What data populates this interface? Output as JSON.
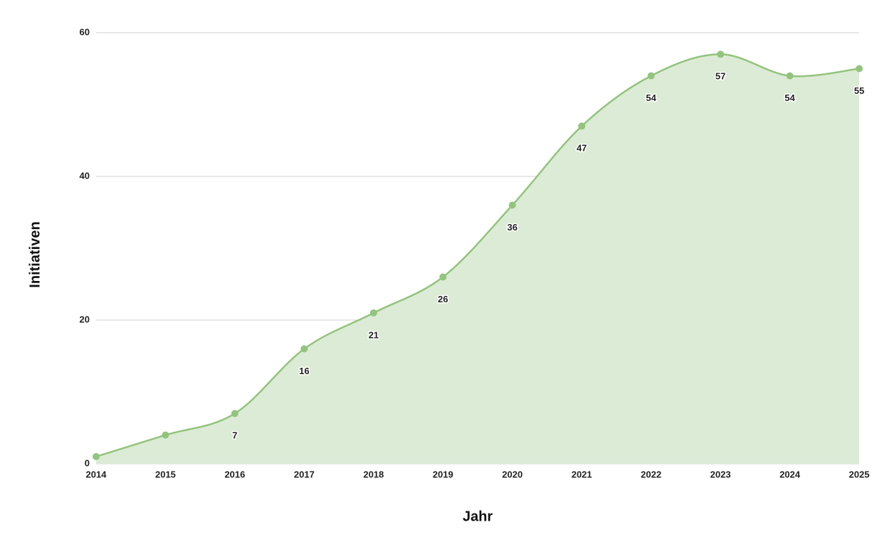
{
  "chart_data": {
    "type": "area",
    "x": [
      2014,
      2015,
      2016,
      2017,
      2018,
      2019,
      2020,
      2021,
      2022,
      2023,
      2024,
      2025
    ],
    "series": [
      {
        "name": "Initiativen",
        "color": "#93c47d",
        "values": [
          1,
          4,
          7,
          16,
          21,
          26,
          36,
          47,
          54,
          57,
          54,
          55
        ],
        "value_labels": [
          null,
          null,
          "7",
          "16",
          "21",
          "26",
          "36",
          "47",
          "54",
          "57",
          "54",
          "55"
        ]
      }
    ],
    "fill_color": "#dcebd5",
    "xlabel": "Jahr",
    "ylabel": "Initiativen",
    "xlim": [
      2014,
      2025
    ],
    "xticks": [
      2014,
      2015,
      2016,
      2017,
      2018,
      2019,
      2020,
      2021,
      2022,
      2023,
      2024,
      2025
    ],
    "ylim": [
      0,
      60
    ],
    "yticks": [
      0,
      20,
      40,
      60
    ],
    "grid": true,
    "smooth": true
  }
}
